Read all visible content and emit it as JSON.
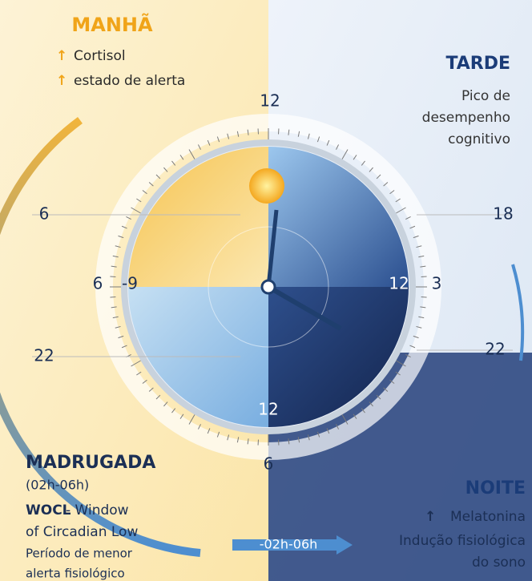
{
  "morning": {
    "title": "MANHÃ",
    "items": [
      {
        "icon": "↑",
        "text": "Cortisol"
      },
      {
        "icon": "↑",
        "text": "estado de alerta"
      }
    ]
  },
  "afternoon": {
    "title": "TARDE",
    "lines": [
      "Pico de",
      "desempenho",
      "cognitivo"
    ]
  },
  "clock": {
    "labels": [
      "12",
      "6",
      "18",
      "6",
      "-9",
      "12",
      "3",
      "22",
      "22",
      "12",
      "6"
    ]
  },
  "dawn": {
    "title": "MADRUGADA",
    "range": "(02h-06h)",
    "wocl_term": "WOCL",
    "wocl_lines": [
      "- Window",
      "of Circadian Low"
    ],
    "note_lines": [
      "Período de menor",
      "alerta fisiológico"
    ]
  },
  "night": {
    "title": "NOITE",
    "items": [
      {
        "icon": "↑",
        "text": "Melatonina"
      }
    ],
    "lines": [
      "Indução fisiológica",
      "do sono"
    ]
  },
  "arrow_label": "-02h-06h"
}
